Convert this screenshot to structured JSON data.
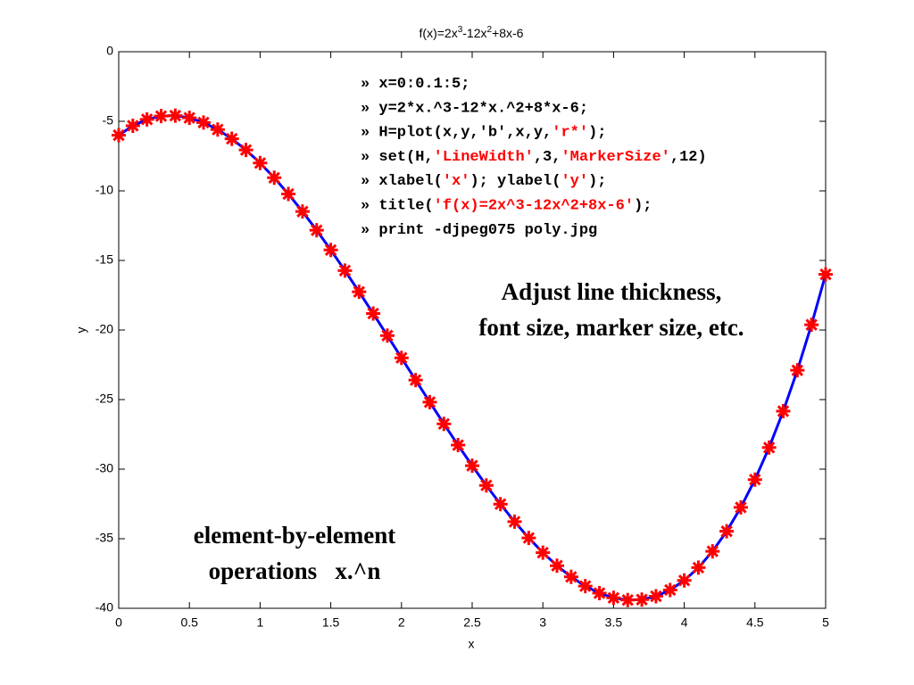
{
  "chart_data": {
    "type": "line",
    "title": [
      "f(x)=2x",
      "3",
      "-12x",
      "2",
      "+8x-6"
    ],
    "x_label": "x",
    "y_label": "y",
    "x": [
      0,
      0.1,
      0.2,
      0.3,
      0.4,
      0.5,
      0.6,
      0.7,
      0.8,
      0.9,
      1,
      1.1,
      1.2,
      1.3,
      1.4,
      1.5,
      1.6,
      1.7,
      1.8,
      1.9,
      2,
      2.1,
      2.2,
      2.3,
      2.4,
      2.5,
      2.6,
      2.7,
      2.8,
      2.9,
      3,
      3.1,
      3.2,
      3.3,
      3.4,
      3.5,
      3.6,
      3.7,
      3.8,
      3.9,
      4,
      4.1,
      4.2,
      4.3,
      4.4,
      4.5,
      4.6,
      4.7,
      4.8,
      4.9,
      5
    ],
    "series": [
      {
        "color": "#0000ff",
        "marker_color": "#ff0000",
        "line_width": 3,
        "values": [
          -6,
          -5.318,
          -4.864,
          -4.626,
          -4.592,
          -4.75,
          -5.088,
          -5.594,
          -6.256,
          -7.062,
          -8,
          -9.058,
          -10.224,
          -11.486,
          -12.832,
          -14.25,
          -15.728,
          -17.254,
          -18.816,
          -20.402,
          -22,
          -23.598,
          -25.184,
          -26.746,
          -28.272,
          -29.75,
          -31.168,
          -32.514,
          -33.776,
          -34.942,
          -36,
          -36.938,
          -37.744,
          -38.406,
          -38.912,
          -39.25,
          -39.408,
          -39.374,
          -39.136,
          -38.682,
          -38,
          -37.078,
          -35.904,
          -34.466,
          -32.752,
          -30.75,
          -28.448,
          -25.834,
          -22.896,
          -19.622,
          -16
        ]
      }
    ],
    "xlim": [
      0,
      5
    ],
    "xticks": [
      0,
      0.5,
      1,
      1.5,
      2,
      2.5,
      3,
      3.5,
      4,
      4.5,
      5
    ],
    "ylim": [
      -40,
      0
    ],
    "yticks": [
      0,
      -5,
      -10,
      -15,
      -20,
      -25,
      -30,
      -35,
      -40
    ],
    "grid": false,
    "code": {
      "string_color": "#ff0000",
      "lines": [
        [
          "» x=0:0.1:5;"
        ],
        [
          "» y=2*x.^3-12*x.^2+8*x-6;"
        ],
        [
          "» H=plot(x,y,'b',x,y,",
          "'r*'",
          ");"
        ],
        [
          "» set(H,",
          "'LineWidth'",
          ",3,",
          "'MarkerSize'",
          ",12)"
        ],
        [
          "» xlabel(",
          "'x'",
          "); ylabel(",
          "'y'",
          ");"
        ],
        [
          "» title(",
          "'f(x)=2x^3-12x^2+8x-6'",
          ");"
        ],
        [
          "» print -djpeg075 poly.jpg"
        ]
      ]
    },
    "notes": [
      {
        "color": "#ee1111",
        "lines": [
          "Adjust line thickness,",
          "font size, marker size, etc."
        ]
      },
      {
        "color": "#cc0099",
        "lines": [
          "element-by-element",
          "operations   x.^n"
        ]
      }
    ]
  }
}
